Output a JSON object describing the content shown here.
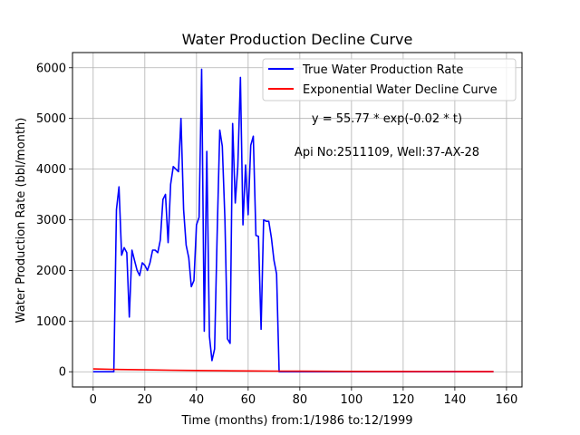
{
  "chart_data": {
    "type": "line",
    "title": "Water Production Decline Curve",
    "xlabel": "Time (months) from:1/1986 to:12/1999",
    "ylabel": "Water Production Rate (bbl/month)",
    "xlim": [
      -8,
      166
    ],
    "ylim": [
      -300,
      6300
    ],
    "xticks": [
      0,
      20,
      40,
      60,
      80,
      100,
      120,
      140,
      160
    ],
    "yticks": [
      0,
      1000,
      2000,
      3000,
      4000,
      5000,
      6000
    ],
    "grid": true,
    "legend_position": "top-right",
    "annotations": [
      "y = 55.77 * exp(-0.02 * t)",
      "Api No:2511109, Well:37-AX-28"
    ],
    "series": [
      {
        "name": "True Water Production Rate",
        "color": "#0000ff",
        "x": [
          0,
          1,
          2,
          3,
          4,
          5,
          6,
          7,
          8,
          9,
          10,
          11,
          12,
          13,
          14,
          15,
          16,
          17,
          18,
          19,
          20,
          21,
          22,
          23,
          24,
          25,
          26,
          27,
          28,
          29,
          30,
          31,
          32,
          33,
          34,
          35,
          36,
          37,
          38,
          39,
          40,
          41,
          42,
          43,
          44,
          45,
          46,
          47,
          48,
          49,
          50,
          51,
          52,
          53,
          54,
          55,
          56,
          57,
          58,
          59,
          60,
          61,
          62,
          63,
          64,
          65,
          66,
          67,
          68,
          69,
          70,
          71,
          72,
          73,
          80,
          100,
          120,
          140,
          155
        ],
        "y": [
          0,
          0,
          0,
          0,
          0,
          0,
          0,
          0,
          0,
          3200,
          3650,
          2300,
          2450,
          2350,
          1080,
          2400,
          2200,
          2000,
          1900,
          2150,
          2100,
          2000,
          2150,
          2400,
          2400,
          2350,
          2600,
          3400,
          3500,
          2550,
          3700,
          4050,
          4000,
          3950,
          5000,
          3200,
          2500,
          2250,
          1680,
          1800,
          2900,
          3050,
          5970,
          800,
          4350,
          700,
          220,
          450,
          2700,
          4770,
          4450,
          3000,
          650,
          560,
          4900,
          3330,
          4050,
          5810,
          2900,
          4080,
          3100,
          4470,
          4650,
          2690,
          2670,
          840,
          3000,
          2970,
          2970,
          2640,
          2200,
          1930,
          0,
          0,
          0,
          0,
          0,
          0,
          0
        ]
      },
      {
        "name": "Exponential Water Decline Curve",
        "color": "#ff0000",
        "x": [
          0,
          10,
          20,
          30,
          40,
          50,
          60,
          70,
          80,
          90,
          100,
          110,
          120,
          130,
          140,
          150,
          155
        ],
        "y": [
          55.8,
          45.7,
          37.4,
          30.6,
          25.1,
          20.5,
          16.8,
          13.8,
          11.3,
          9.2,
          7.5,
          6.2,
          5.1,
          4.1,
          3.4,
          2.8,
          2.5
        ]
      }
    ]
  }
}
